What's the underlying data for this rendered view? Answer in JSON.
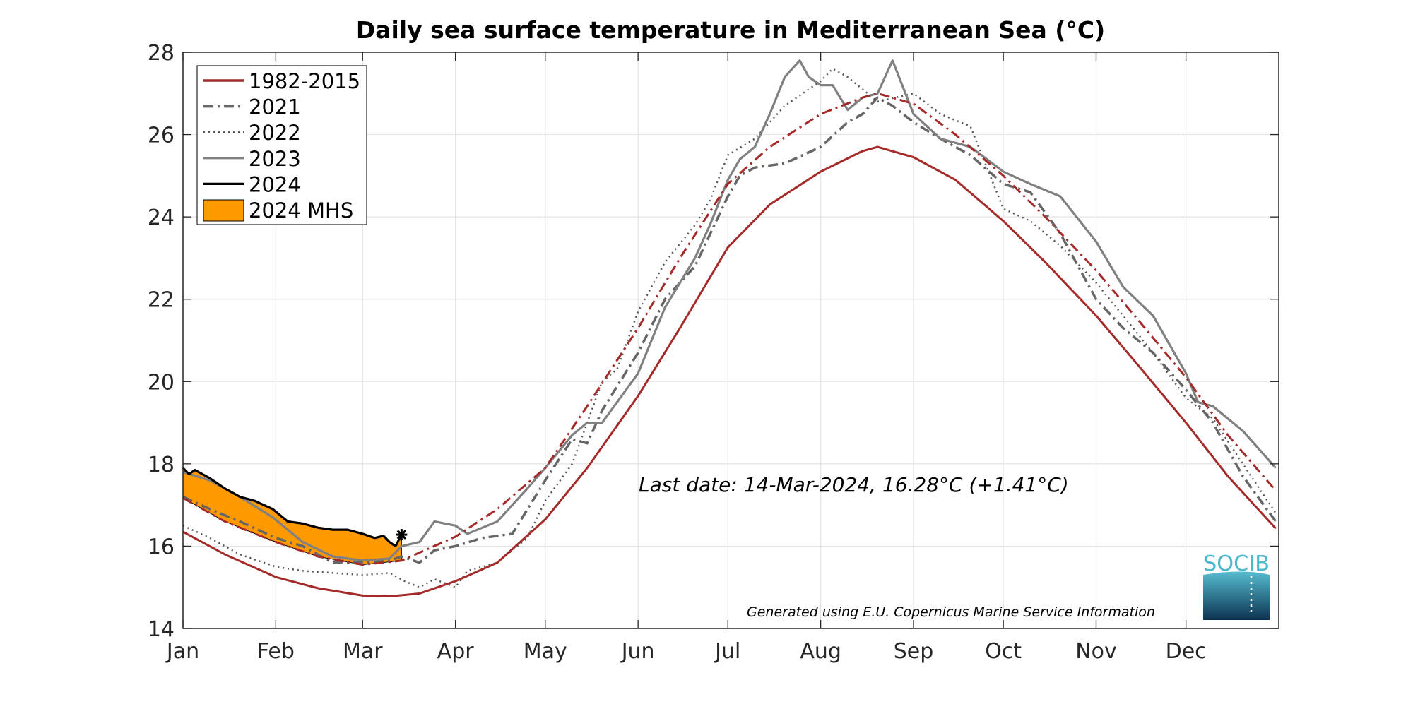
{
  "chart_data": {
    "type": "line",
    "title": "Daily sea surface temperature in Mediterranean Sea (°C)",
    "xlabel": "",
    "ylabel": "",
    "ylim": [
      14,
      28
    ],
    "yticks": [
      "14",
      "16",
      "18",
      "20",
      "22",
      "24",
      "26",
      "28"
    ],
    "xticks": [
      "Jan",
      "Feb",
      "Mar",
      "Apr",
      "May",
      "Jun",
      "Jul",
      "Aug",
      "Sep",
      "Oct",
      "Nov",
      "Dec"
    ],
    "grid": true,
    "legend_position": "top-left",
    "annotation": "Last date: 14-Mar-2024, 16.28°C (+1.41°C)",
    "credit": "Generated using E.U. Copernicus Marine Service Information",
    "logo_text": "SOCIB",
    "colors": {
      "climatology": "#a52a2a",
      "threshold": "#a52a2a",
      "2021": "#666666",
      "2022": "#555555",
      "2023": "#808080",
      "2024": "#000000",
      "mhs": "#ff9900",
      "logo": "#4bb8cc"
    },
    "series": [
      {
        "name": "1982-2015",
        "style": "solid",
        "points": [
          [
            "01-01",
            16.35
          ],
          [
            "01-15",
            15.8
          ],
          [
            "02-01",
            15.25
          ],
          [
            "02-15",
            14.98
          ],
          [
            "03-01",
            14.8
          ],
          [
            "03-10",
            14.78
          ],
          [
            "03-20",
            14.85
          ],
          [
            "04-01",
            15.15
          ],
          [
            "04-15",
            15.6
          ],
          [
            "05-01",
            16.65
          ],
          [
            "05-15",
            17.9
          ],
          [
            "06-01",
            19.65
          ],
          [
            "06-15",
            21.3
          ],
          [
            "07-01",
            23.26
          ],
          [
            "07-15",
            24.3
          ],
          [
            "08-01",
            25.1
          ],
          [
            "08-15",
            25.6
          ],
          [
            "08-20",
            25.7
          ],
          [
            "09-01",
            25.45
          ],
          [
            "09-15",
            24.9
          ],
          [
            "10-01",
            23.9
          ],
          [
            "10-15",
            22.9
          ],
          [
            "11-01",
            21.6
          ],
          [
            "11-15",
            20.4
          ],
          [
            "12-01",
            19.0
          ],
          [
            "12-15",
            17.7
          ],
          [
            "12-31",
            16.43
          ]
        ]
      },
      {
        "name": "",
        "style": "dashdot-red",
        "points": [
          [
            "01-01",
            17.17
          ],
          [
            "01-15",
            16.6
          ],
          [
            "02-01",
            16.1
          ],
          [
            "02-15",
            15.75
          ],
          [
            "03-01",
            15.55
          ],
          [
            "03-14",
            15.65
          ],
          [
            "04-01",
            16.23
          ],
          [
            "04-15",
            16.9
          ],
          [
            "05-01",
            17.9
          ],
          [
            "05-15",
            19.4
          ],
          [
            "06-01",
            21.3
          ],
          [
            "06-15",
            23.0
          ],
          [
            "07-01",
            24.8
          ],
          [
            "07-15",
            25.7
          ],
          [
            "08-01",
            26.5
          ],
          [
            "08-15",
            26.9
          ],
          [
            "08-20",
            27.0
          ],
          [
            "09-01",
            26.75
          ],
          [
            "09-15",
            26.0
          ],
          [
            "10-01",
            25.0
          ],
          [
            "10-15",
            24.0
          ],
          [
            "11-01",
            22.7
          ],
          [
            "11-15",
            21.5
          ],
          [
            "12-01",
            20.1
          ],
          [
            "12-15",
            18.7
          ],
          [
            "12-31",
            17.35
          ]
        ]
      },
      {
        "name": "2021",
        "style": "dashdot",
        "points": [
          [
            "01-01",
            17.2
          ],
          [
            "01-10",
            16.9
          ],
          [
            "01-20",
            16.6
          ],
          [
            "02-01",
            16.2
          ],
          [
            "02-10",
            16.0
          ],
          [
            "02-20",
            15.6
          ],
          [
            "03-01",
            15.6
          ],
          [
            "03-10",
            15.65
          ],
          [
            "03-14",
            15.75
          ],
          [
            "03-20",
            15.6
          ],
          [
            "03-25",
            15.9
          ],
          [
            "04-01",
            16.0
          ],
          [
            "04-10",
            16.2
          ],
          [
            "04-20",
            16.3
          ],
          [
            "05-01",
            17.6
          ],
          [
            "05-10",
            18.6
          ],
          [
            "05-15",
            18.5
          ],
          [
            "05-20",
            19.3
          ],
          [
            "06-01",
            20.7
          ],
          [
            "06-10",
            22.0
          ],
          [
            "06-20",
            22.8
          ],
          [
            "07-01",
            24.5
          ],
          [
            "07-05",
            25.0
          ],
          [
            "07-10",
            25.2
          ],
          [
            "07-20",
            25.3
          ],
          [
            "08-01",
            25.7
          ],
          [
            "08-10",
            26.3
          ],
          [
            "08-15",
            26.5
          ],
          [
            "08-20",
            26.9
          ],
          [
            "08-25",
            26.7
          ],
          [
            "09-01",
            26.3
          ],
          [
            "09-10",
            25.9
          ],
          [
            "09-20",
            25.5
          ],
          [
            "10-01",
            24.8
          ],
          [
            "10-10",
            24.6
          ],
          [
            "10-20",
            23.6
          ],
          [
            "11-01",
            22.0
          ],
          [
            "11-10",
            21.3
          ],
          [
            "11-20",
            20.7
          ],
          [
            "12-01",
            19.8
          ],
          [
            "12-10",
            19.0
          ],
          [
            "12-20",
            17.7
          ],
          [
            "12-31",
            16.6
          ]
        ]
      },
      {
        "name": "2022",
        "style": "dotted",
        "points": [
          [
            "01-01",
            16.5
          ],
          [
            "01-10",
            16.2
          ],
          [
            "01-20",
            15.8
          ],
          [
            "02-01",
            15.5
          ],
          [
            "02-10",
            15.4
          ],
          [
            "02-20",
            15.35
          ],
          [
            "03-01",
            15.3
          ],
          [
            "03-10",
            15.35
          ],
          [
            "03-15",
            15.15
          ],
          [
            "03-20",
            15.0
          ],
          [
            "03-25",
            15.2
          ],
          [
            "04-01",
            15.0
          ],
          [
            "04-05",
            15.4
          ],
          [
            "04-15",
            15.6
          ],
          [
            "04-25",
            16.2
          ],
          [
            "05-01",
            17.1
          ],
          [
            "05-10",
            18.0
          ],
          [
            "05-15",
            19.0
          ],
          [
            "05-20",
            20.0
          ],
          [
            "05-25",
            20.3
          ],
          [
            "06-01",
            21.7
          ],
          [
            "06-10",
            22.9
          ],
          [
            "06-20",
            23.8
          ],
          [
            "06-25",
            24.4
          ],
          [
            "07-01",
            25.5
          ],
          [
            "07-10",
            25.9
          ],
          [
            "07-20",
            26.7
          ],
          [
            "08-01",
            27.3
          ],
          [
            "08-05",
            27.6
          ],
          [
            "08-10",
            27.4
          ],
          [
            "08-20",
            26.8
          ],
          [
            "09-01",
            27.0
          ],
          [
            "09-10",
            26.5
          ],
          [
            "09-20",
            26.2
          ],
          [
            "10-01",
            24.2
          ],
          [
            "10-10",
            23.9
          ],
          [
            "10-20",
            23.3
          ],
          [
            "11-01",
            22.4
          ],
          [
            "11-10",
            21.6
          ],
          [
            "11-20",
            20.7
          ],
          [
            "12-01",
            19.6
          ],
          [
            "12-10",
            19.1
          ],
          [
            "12-20",
            18.0
          ],
          [
            "12-31",
            16.8
          ]
        ]
      },
      {
        "name": "2023",
        "style": "solid-gray",
        "points": [
          [
            "01-01",
            17.8
          ],
          [
            "01-10",
            17.6
          ],
          [
            "01-20",
            17.2
          ],
          [
            "01-31",
            16.7
          ],
          [
            "02-10",
            16.1
          ],
          [
            "02-20",
            15.75
          ],
          [
            "03-01",
            15.65
          ],
          [
            "03-10",
            15.7
          ],
          [
            "03-14",
            16.0
          ],
          [
            "03-20",
            16.1
          ],
          [
            "03-25",
            16.6
          ],
          [
            "04-01",
            16.5
          ],
          [
            "04-05",
            16.3
          ],
          [
            "04-15",
            16.6
          ],
          [
            "04-25",
            17.4
          ],
          [
            "05-01",
            17.9
          ],
          [
            "05-10",
            18.7
          ],
          [
            "05-15",
            19.0
          ],
          [
            "05-20",
            19.0
          ],
          [
            "05-25",
            19.5
          ],
          [
            "06-01",
            20.2
          ],
          [
            "06-10",
            21.8
          ],
          [
            "06-20",
            23.0
          ],
          [
            "06-25",
            23.8
          ],
          [
            "07-01",
            24.9
          ],
          [
            "07-05",
            25.4
          ],
          [
            "07-10",
            25.7
          ],
          [
            "07-15",
            26.5
          ],
          [
            "07-20",
            27.4
          ],
          [
            "07-25",
            27.8
          ],
          [
            "07-28",
            27.4
          ],
          [
            "08-01",
            27.2
          ],
          [
            "08-05",
            27.2
          ],
          [
            "08-10",
            26.6
          ],
          [
            "08-15",
            26.9
          ],
          [
            "08-20",
            27.0
          ],
          [
            "08-25",
            27.8
          ],
          [
            "09-01",
            26.5
          ],
          [
            "09-10",
            25.9
          ],
          [
            "09-20",
            25.7
          ],
          [
            "10-01",
            25.1
          ],
          [
            "10-10",
            24.8
          ],
          [
            "10-20",
            24.5
          ],
          [
            "11-01",
            23.4
          ],
          [
            "11-10",
            22.3
          ],
          [
            "11-20",
            21.6
          ],
          [
            "12-01",
            20.2
          ],
          [
            "12-05",
            19.5
          ],
          [
            "12-10",
            19.4
          ],
          [
            "12-20",
            18.8
          ],
          [
            "12-31",
            17.9
          ]
        ]
      },
      {
        "name": "2024",
        "style": "solid-black",
        "points": [
          [
            "01-01",
            17.9
          ],
          [
            "01-03",
            17.75
          ],
          [
            "01-05",
            17.85
          ],
          [
            "01-10",
            17.65
          ],
          [
            "01-15",
            17.4
          ],
          [
            "01-20",
            17.2
          ],
          [
            "01-25",
            17.1
          ],
          [
            "01-31",
            16.9
          ],
          [
            "02-05",
            16.6
          ],
          [
            "02-10",
            16.55
          ],
          [
            "02-15",
            16.45
          ],
          [
            "02-20",
            16.4
          ],
          [
            "02-25",
            16.4
          ],
          [
            "03-01",
            16.3
          ],
          [
            "03-05",
            16.2
          ],
          [
            "03-08",
            16.25
          ],
          [
            "03-10",
            16.1
          ],
          [
            "03-12",
            16.0
          ],
          [
            "03-14",
            16.28
          ]
        ]
      }
    ],
    "legend": [
      {
        "label": "1982-2015",
        "style": "solid-red"
      },
      {
        "label": "2021",
        "style": "dashdot"
      },
      {
        "label": "2022",
        "style": "dotted"
      },
      {
        "label": "2023",
        "style": "solid-gray"
      },
      {
        "label": "2024",
        "style": "solid-black"
      },
      {
        "label": "2024 MHS",
        "style": "fill-orange"
      }
    ]
  }
}
